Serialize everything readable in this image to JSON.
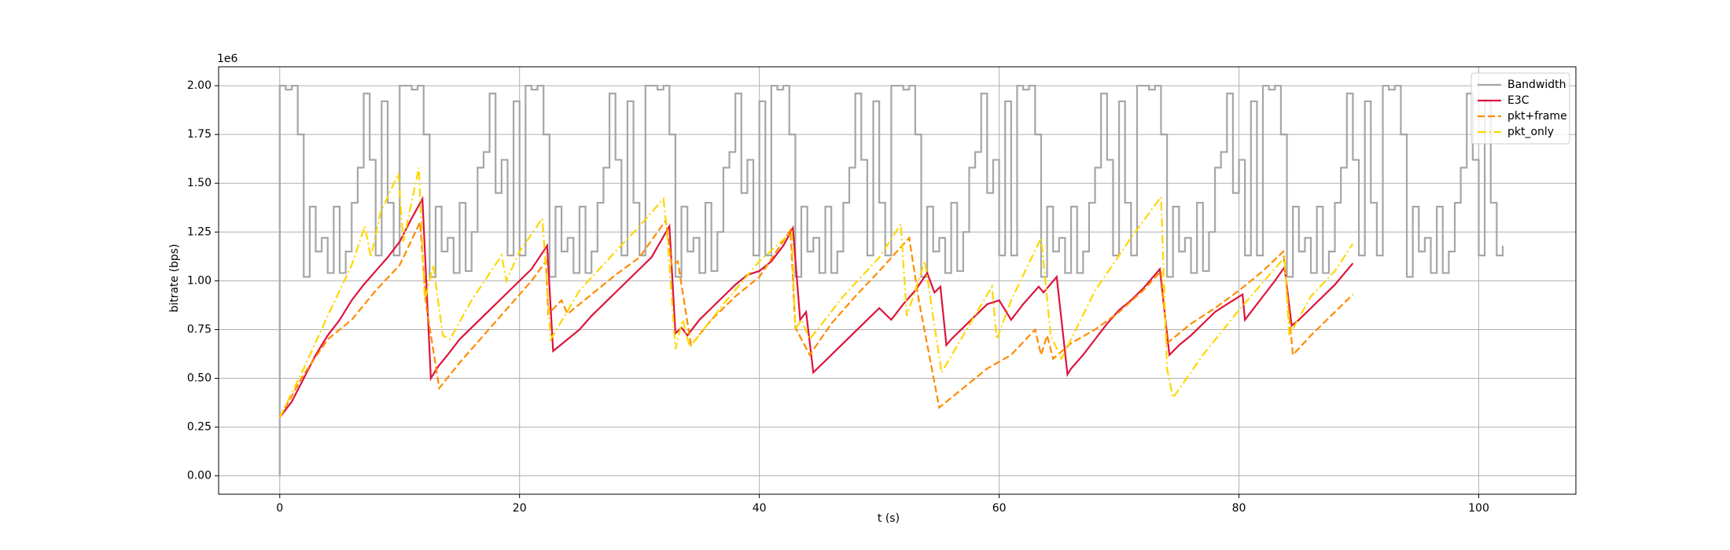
{
  "chart_data": {
    "type": "line",
    "xlabel": "t (s)",
    "ylabel": "bitrate (bps)",
    "y_offset_label": "1e6",
    "xlim": [
      -5.1,
      108.1
    ],
    "ylim": [
      -0.094,
      2.097
    ],
    "xticks": [
      0,
      20,
      40,
      60,
      80,
      100
    ],
    "yticks": [
      {
        "value": 0,
        "label": "0.00"
      },
      0.25,
      {
        "value": 0.5,
        "label": "0.50"
      },
      0.75,
      {
        "value": 1,
        "label": "1.00"
      },
      1.25,
      {
        "value": 1.5,
        "label": "1.50"
      },
      1.75,
      {
        "value": 2,
        "label": "2.00"
      }
    ],
    "grid": true,
    "legend": "upper right",
    "series": [
      {
        "name": "Bandwidth",
        "color": "#a6a6a6",
        "dash": "solid",
        "drawstyle": "steps-post",
        "x": [
          0,
          0,
          0.5,
          1,
          1.5,
          2,
          2.5,
          3,
          3.5,
          4,
          4.5,
          5,
          5.5,
          6,
          6.5,
          7,
          7.5,
          8,
          8.5,
          9,
          9.5,
          10,
          10.5,
          11,
          11.5,
          12,
          12.5,
          13,
          13.5,
          14,
          14.5,
          15,
          15.5,
          16,
          16.5,
          17,
          17.5,
          18,
          18.5,
          19,
          19.5,
          20,
          20.5,
          21,
          21.5,
          22,
          22.5,
          23,
          23.5,
          24,
          24.5,
          25,
          25.5,
          26,
          26.5,
          27,
          27.5,
          28,
          28.5,
          29,
          29.5,
          30,
          30.5,
          31,
          31.5,
          32,
          32.5,
          33,
          33.5,
          34,
          34.5,
          35,
          35.5,
          36,
          36.5,
          37,
          37.5,
          38,
          38.5,
          39,
          39.5,
          40,
          40.5,
          41,
          41.5,
          42,
          42.5,
          43,
          43.5,
          44,
          44.5,
          45,
          45.5,
          46,
          46.5,
          47,
          47.5,
          48,
          48.5,
          49,
          49.5,
          50,
          50.5,
          51,
          51.5,
          52,
          52.5,
          53,
          53.5,
          54,
          54.5,
          55,
          55.5,
          56,
          56.5,
          57,
          57.5,
          58,
          58.5,
          59,
          59.5,
          60,
          60.5,
          61,
          61.5,
          62,
          62.5,
          63,
          63.5,
          64,
          64.5,
          65,
          65.5,
          66,
          66.5,
          67,
          67.5,
          68,
          68.5,
          69,
          69.5,
          70,
          70.5,
          71,
          71.5,
          72,
          72.5,
          73,
          73.5,
          74,
          74.5,
          75,
          75.5,
          76,
          76.5,
          77,
          77.5,
          78,
          78.5,
          79,
          79.5,
          80,
          80.5,
          81,
          81.5,
          82,
          82.5,
          83,
          83.5,
          84,
          84.5,
          85,
          85.5,
          86,
          86.5,
          87,
          87.5,
          88,
          88.5,
          89,
          89.5,
          90,
          90.5,
          91,
          91.5,
          92,
          92.5,
          93,
          93.5,
          94,
          94.5,
          95,
          95.5,
          96,
          96.5,
          97,
          97.5,
          98,
          98.5,
          99,
          99.5,
          100,
          100.5,
          101,
          101.5,
          102
        ],
        "values": [
          0,
          2.0,
          1.98,
          2.0,
          1.75,
          1.02,
          1.38,
          1.15,
          1.22,
          1.04,
          1.38,
          1.04,
          1.15,
          1.4,
          1.58,
          1.96,
          1.62,
          1.13,
          1.92,
          1.4,
          1.13,
          2.0,
          2.0,
          1.98,
          2.0,
          1.75,
          1.02,
          1.38,
          1.15,
          1.22,
          1.04,
          1.4,
          1.05,
          1.25,
          1.58,
          1.66,
          1.96,
          1.45,
          1.62,
          1.13,
          1.92,
          1.13,
          2.0,
          1.98,
          2.0,
          1.75,
          1.02,
          1.38,
          1.15,
          1.22,
          1.04,
          1.38,
          1.04,
          1.15,
          1.4,
          1.58,
          1.96,
          1.62,
          1.13,
          1.92,
          1.4,
          1.13,
          2.0,
          2.0,
          1.98,
          2.0,
          1.75,
          1.02,
          1.38,
          1.15,
          1.22,
          1.04,
          1.4,
          1.05,
          1.25,
          1.58,
          1.66,
          1.96,
          1.45,
          1.62,
          1.13,
          1.92,
          1.13,
          2.0,
          1.98,
          2.0,
          1.75,
          1.02,
          1.38,
          1.15,
          1.22,
          1.04,
          1.38,
          1.04,
          1.15,
          1.4,
          1.58,
          1.96,
          1.62,
          1.13,
          1.92,
          1.4,
          1.13,
          2.0,
          2.0,
          1.98,
          2.0,
          1.75,
          1.02,
          1.38,
          1.15,
          1.22,
          1.04,
          1.4,
          1.05,
          1.25,
          1.58,
          1.66,
          1.96,
          1.45,
          1.62,
          1.13,
          1.92,
          1.13,
          2.0,
          1.98,
          2.0,
          1.75,
          1.02,
          1.38,
          1.15,
          1.22,
          1.04,
          1.38,
          1.04,
          1.15,
          1.4,
          1.58,
          1.96,
          1.62,
          1.13,
          1.92,
          1.4,
          1.13,
          2.0,
          2.0,
          1.98,
          2.0,
          1.75,
          1.02,
          1.38,
          1.15,
          1.22,
          1.04,
          1.4,
          1.05,
          1.25,
          1.58,
          1.66,
          1.96,
          1.45,
          1.62,
          1.13,
          1.92,
          1.13,
          2.0,
          1.98,
          2.0,
          1.75,
          1.02,
          1.38,
          1.15,
          1.22,
          1.04,
          1.38,
          1.04,
          1.15,
          1.4,
          1.58,
          1.96,
          1.62,
          1.13,
          1.92,
          1.4,
          1.13,
          2.0,
          1.98,
          2.0,
          1.75,
          1.02,
          1.38,
          1.15,
          1.22,
          1.04,
          1.38,
          1.04,
          1.15,
          1.4,
          1.58,
          1.96,
          1.62,
          1.13,
          1.92,
          1.4,
          1.13,
          1.18
        ]
      },
      {
        "name": "E3C",
        "color": "#dc143c",
        "dash": "solid",
        "x": [
          0,
          1,
          2,
          3,
          4,
          5,
          6,
          7,
          8,
          9,
          10,
          11,
          11.9,
          12.6,
          13.2,
          14,
          15,
          16,
          17,
          18,
          19,
          20,
          21,
          22.3,
          22.8,
          24,
          25,
          26,
          27,
          28,
          29,
          30,
          31,
          32.5,
          33,
          33.5,
          34,
          35,
          36,
          37,
          38,
          39,
          40,
          41,
          42,
          42.8,
          43.4,
          43.9,
          44.5,
          45,
          46,
          47,
          48,
          49,
          50,
          51,
          52,
          53,
          54,
          54.6,
          55.1,
          55.6,
          56,
          57,
          58,
          59,
          60,
          61,
          62,
          63.3,
          63.7,
          64.8,
          65.7,
          66,
          67,
          68,
          69,
          70,
          71,
          72,
          73.4,
          74.2,
          75,
          76,
          77,
          78,
          79,
          80.3,
          80.5,
          81,
          82,
          83,
          83.8,
          84.4,
          85,
          86,
          87,
          88,
          89.5
        ],
        "values": [
          0.3,
          0.38,
          0.5,
          0.62,
          0.72,
          0.8,
          0.9,
          0.98,
          1.05,
          1.12,
          1.2,
          1.32,
          1.42,
          0.5,
          0.56,
          0.62,
          0.7,
          0.76,
          0.82,
          0.88,
          0.94,
          1.0,
          1.06,
          1.18,
          0.64,
          0.7,
          0.75,
          0.82,
          0.88,
          0.94,
          1.0,
          1.06,
          1.12,
          1.28,
          0.73,
          0.76,
          0.72,
          0.8,
          0.86,
          0.92,
          0.98,
          1.03,
          1.05,
          1.1,
          1.18,
          1.27,
          0.8,
          0.84,
          0.53,
          0.56,
          0.62,
          0.68,
          0.74,
          0.8,
          0.86,
          0.8,
          0.88,
          0.95,
          1.04,
          0.94,
          0.97,
          0.67,
          0.7,
          0.76,
          0.82,
          0.88,
          0.9,
          0.8,
          0.88,
          0.97,
          0.94,
          1.02,
          0.52,
          0.55,
          0.62,
          0.7,
          0.78,
          0.85,
          0.9,
          0.96,
          1.06,
          0.62,
          0.67,
          0.72,
          0.78,
          0.84,
          0.88,
          0.93,
          0.8,
          0.84,
          0.92,
          1.0,
          1.07,
          0.77,
          0.8,
          0.86,
          0.92,
          0.98,
          1.09
        ]
      },
      {
        "name": "pkt+frame",
        "color": "#ff8c00",
        "dash": "dashed",
        "x": [
          0,
          2,
          4,
          6,
          8,
          10,
          11.7,
          12.2,
          13.3,
          15,
          17,
          19,
          21,
          22.2,
          22.4,
          23.5,
          24,
          26,
          28,
          30,
          32.2,
          32.7,
          33.2,
          34.3,
          36,
          38,
          40,
          42.6,
          43,
          44.2,
          46,
          48,
          50,
          52.5,
          53.3,
          55,
          57,
          59,
          61,
          63,
          63.5,
          64,
          64.5,
          66,
          68,
          70,
          72,
          73.5,
          74,
          76,
          78,
          80,
          82,
          83.7,
          84.5,
          86,
          88,
          89.5
        ],
        "values": [
          0.3,
          0.52,
          0.7,
          0.8,
          0.95,
          1.08,
          1.3,
          0.88,
          0.45,
          0.58,
          0.72,
          0.86,
          1.0,
          1.1,
          0.83,
          0.9,
          0.83,
          0.93,
          1.03,
          1.12,
          1.31,
          1.08,
          1.1,
          0.67,
          0.8,
          0.92,
          1.02,
          1.26,
          0.76,
          0.62,
          0.78,
          0.92,
          1.05,
          1.22,
          0.9,
          0.35,
          0.45,
          0.55,
          0.62,
          0.75,
          0.62,
          0.72,
          0.6,
          0.68,
          0.75,
          0.84,
          0.95,
          1.05,
          0.68,
          0.78,
          0.86,
          0.95,
          1.05,
          1.15,
          0.62,
          0.72,
          0.84,
          0.93
        ]
      },
      {
        "name": "pkt_only",
        "color": "#ffd700",
        "dash": "dashdot",
        "x": [
          0,
          2,
          4,
          6,
          7.1,
          7.6,
          8.4,
          9.9,
          10.3,
          11.6,
          12.1,
          12.8,
          13.6,
          14.2,
          16,
          18.5,
          18.9,
          20,
          21.9,
          22.6,
          25,
          28,
          30,
          32,
          32.3,
          33,
          33.6,
          34.2,
          37,
          40,
          42.7,
          43,
          43.5,
          44.2,
          47,
          50,
          51.8,
          52.3,
          53.8,
          55.2,
          57,
          59.4,
          59.8,
          61,
          63.5,
          64.3,
          65.2,
          68,
          71,
          73.5,
          74,
          74.5,
          77,
          80,
          83.8,
          84.2,
          86,
          88,
          89.5
        ],
        "values": [
          0.3,
          0.55,
          0.82,
          1.08,
          1.28,
          1.12,
          1.35,
          1.55,
          1.2,
          1.58,
          0.9,
          1.08,
          0.72,
          0.7,
          0.9,
          1.13,
          1.0,
          1.15,
          1.32,
          0.7,
          0.95,
          1.15,
          1.28,
          1.42,
          1.25,
          0.65,
          0.8,
          0.66,
          0.88,
          1.1,
          1.25,
          0.75,
          0.8,
          0.7,
          0.92,
          1.12,
          1.29,
          0.82,
          1.1,
          0.53,
          0.72,
          0.97,
          0.7,
          0.9,
          1.22,
          0.72,
          0.6,
          0.95,
          1.22,
          1.43,
          0.55,
          0.4,
          0.62,
          0.85,
          1.12,
          0.72,
          0.92,
          1.05,
          1.19
        ]
      }
    ]
  }
}
